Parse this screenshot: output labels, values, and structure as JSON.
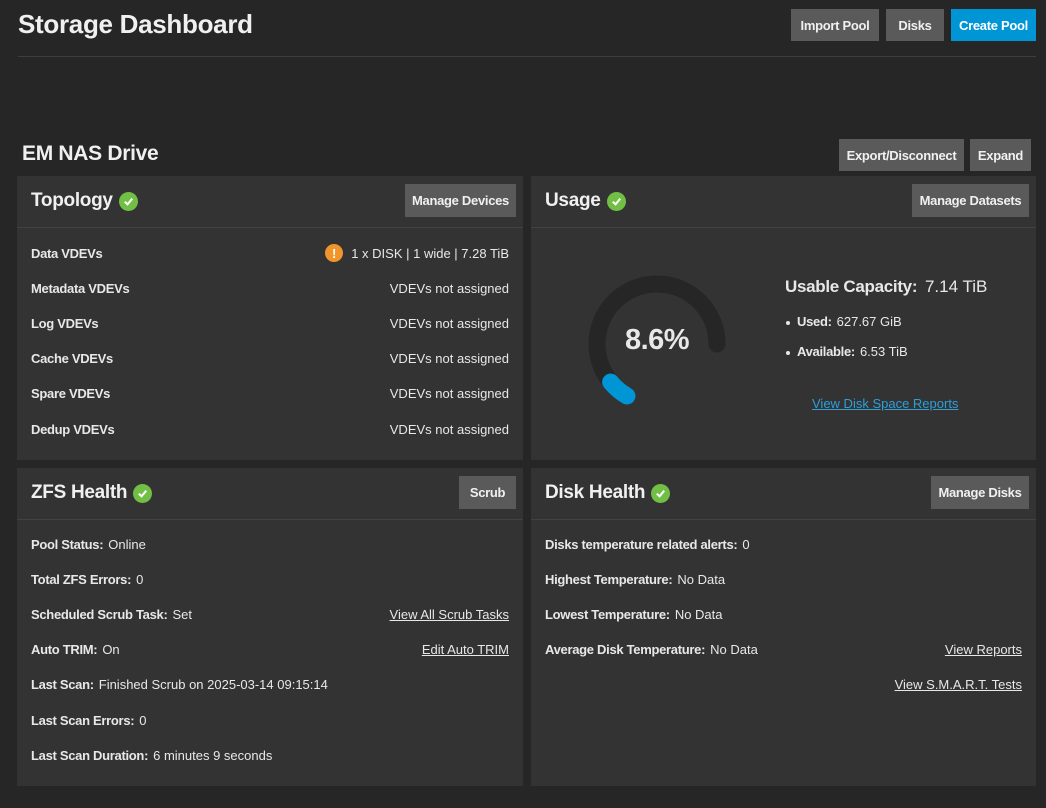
{
  "header": {
    "title": "Storage Dashboard",
    "import_pool": "Import Pool",
    "disks": "Disks",
    "create_pool": "Create Pool"
  },
  "pool": {
    "name": "EM NAS Drive",
    "export": "Export/Disconnect",
    "expand": "Expand"
  },
  "topology": {
    "title": "Topology",
    "button": "Manage Devices",
    "warn_icon": "!",
    "rows": [
      {
        "label": "Data VDEVs",
        "value": "1 x DISK | 1 wide | 7.28 TiB"
      },
      {
        "label": "Metadata VDEVs",
        "value": "VDEVs not assigned"
      },
      {
        "label": "Log VDEVs",
        "value": "VDEVs not assigned"
      },
      {
        "label": "Cache VDEVs",
        "value": "VDEVs not assigned"
      },
      {
        "label": "Spare VDEVs",
        "value": "VDEVs not assigned"
      },
      {
        "label": "Dedup VDEVs",
        "value": "VDEVs not assigned"
      }
    ]
  },
  "usage": {
    "title": "Usage",
    "button": "Manage Datasets",
    "percent_text": "8.6%",
    "percent_value": 8.6,
    "capacity_label": "Usable Capacity:",
    "capacity_value": "7.14 TiB",
    "used_label": "Used:",
    "used_value": "627.67 GiB",
    "available_label": "Available:",
    "available_value": "6.53 TiB",
    "report_link": "View Disk Space Reports"
  },
  "zfs": {
    "title": "ZFS Health",
    "button": "Scrub",
    "pool_status_label": "Pool Status:",
    "pool_status_value": "Online",
    "errors_label": "Total ZFS Errors:",
    "errors_value": "0",
    "scrub_task_label": "Scheduled Scrub Task:",
    "scrub_task_value": "Set",
    "scrub_link": "View All Scrub Tasks",
    "trim_label": "Auto TRIM:",
    "trim_value": "On",
    "trim_link": "Edit Auto TRIM",
    "last_scan_label": "Last Scan:",
    "last_scan_value": "Finished Scrub on 2025-03-14 09:15:14",
    "scan_errors_label": "Last Scan Errors:",
    "scan_errors_value": "0",
    "scan_duration_label": "Last Scan Duration:",
    "scan_duration_value": "6 minutes 9 seconds"
  },
  "disk_health": {
    "title": "Disk Health",
    "button": "Manage Disks",
    "alerts_label": "Disks temperature related alerts:",
    "alerts_value": "0",
    "highest_label": "Highest Temperature:",
    "highest_value": "No Data",
    "lowest_label": "Lowest Temperature:",
    "lowest_value": "No Data",
    "average_label": "Average Disk Temperature:",
    "average_value": "No Data",
    "reports_link": "View Reports",
    "smart_link": "View S.M.A.R.T. Tests"
  },
  "colors": {
    "background": "#262626",
    "card": "#333333",
    "button": "#5a5a5a",
    "primary": "#0095d5",
    "link": "#2d9fd9",
    "ok": "#71bf44",
    "warning": "#f0952b"
  }
}
